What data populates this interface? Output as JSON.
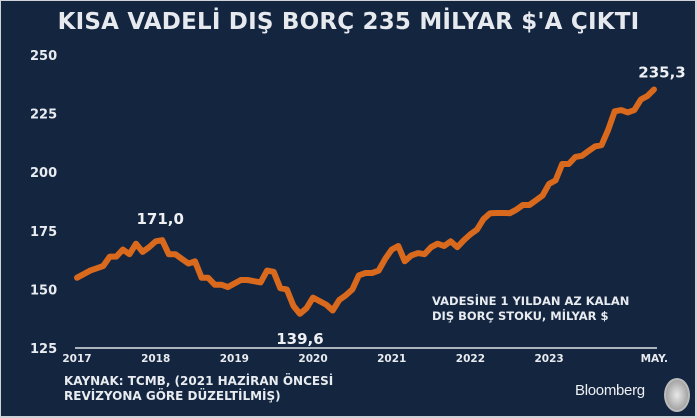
{
  "chart_data": {
    "type": "line",
    "title": "KISA VADELİ DIŞ BORÇ 235 MİLYAR $'A ÇIKTI",
    "xlabel": "",
    "ylabel": "",
    "ylim": [
      125,
      250
    ],
    "yticks": [
      125,
      150,
      175,
      200,
      225,
      250
    ],
    "xtick_labels": [
      "2017",
      "2018",
      "2019",
      "2020",
      "2021",
      "2022",
      "2023",
      "MAY."
    ],
    "xtick_index": [
      0,
      12,
      24,
      36,
      48,
      60,
      72,
      88
    ],
    "x_start": "2017-01",
    "x_frequency": "monthly",
    "grid": false,
    "series": [
      {
        "name": "VADESİNE 1 YILDAN AZ KALAN DIŞ BORÇ STOKU, MİLYAR $",
        "color": "#d9691c",
        "values": [
          155,
          156.5,
          158,
          159,
          160,
          164,
          164,
          167,
          165,
          169.5,
          166,
          168,
          170.5,
          171,
          165,
          165,
          163,
          161,
          162,
          155,
          155,
          152,
          152,
          151,
          152.5,
          154,
          154,
          153.5,
          153,
          158,
          157.5,
          150.5,
          150,
          143,
          139.6,
          142,
          146.5,
          145,
          143.5,
          141,
          145.5,
          147.5,
          150,
          156,
          157,
          157,
          158,
          163,
          167,
          168.5,
          162,
          164.5,
          165.5,
          165,
          168,
          169.5,
          168.5,
          170.5,
          168,
          171,
          173.5,
          175.5,
          180,
          182.5,
          182.6,
          182.6,
          182.5,
          184,
          186,
          186,
          188,
          190,
          195,
          196.5,
          203.5,
          203.5,
          206.5,
          207,
          209,
          211,
          211.5,
          218,
          226,
          226.5,
          225.5,
          226.5,
          231,
          232.5,
          235.3
        ]
      }
    ],
    "annotations": [
      {
        "text": "171,0",
        "index": 13
      },
      {
        "text": "139,6",
        "index": 34
      },
      {
        "text": "235,3",
        "index": 88
      }
    ],
    "legend": {
      "lines": [
        "VADESİNE 1 YILDAN AZ KALAN",
        "DIŞ BORÇ STOKU, MİLYAR $"
      ],
      "placement": "bottom-right"
    }
  },
  "source": {
    "lines": [
      "KAYNAK: TCMB, (2021 HAZİRAN ÖNCESİ",
      "REVİZYONA GÖRE DÜZELTİLMİŞ)"
    ]
  },
  "branding": {
    "bloomberg": "Bloomberg",
    "ht_logo": "HT"
  }
}
